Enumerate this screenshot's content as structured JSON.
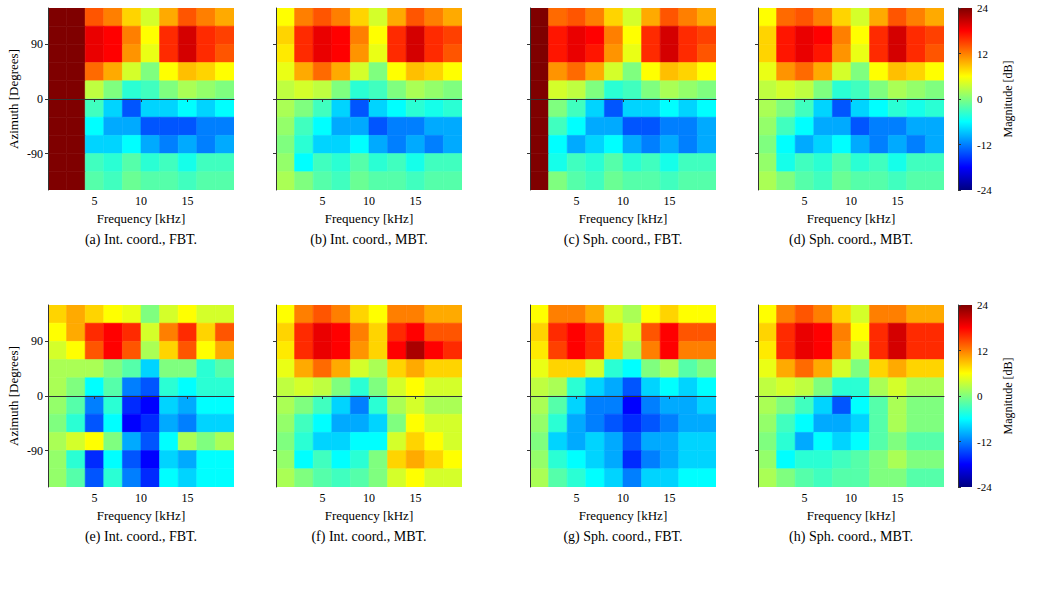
{
  "chart_data": [
    {
      "type": "heatmap",
      "caption": "(a) Int. coord., FBT.",
      "x_label": "Frequency [kHz]",
      "y_label": "Azimuth [Degrees]",
      "xlim": [
        0,
        20
      ],
      "xticks": [
        5,
        10,
        15
      ],
      "ylim": [
        -150,
        150
      ],
      "yticks": [
        90,
        0,
        -90
      ],
      "frequency_edges": [
        0,
        2,
        4,
        6,
        8,
        10,
        12,
        14,
        16,
        18,
        20
      ],
      "azimuth_edges": [
        150,
        120,
        90,
        60,
        30,
        0,
        -30,
        -60,
        -90,
        -120,
        -150
      ],
      "cells": [
        [
          24,
          24,
          14,
          12,
          8,
          4,
          10,
          14,
          12,
          10
        ],
        [
          24,
          24,
          19,
          18,
          12,
          6,
          16,
          20,
          16,
          15
        ],
        [
          24,
          24,
          19,
          18,
          11,
          5,
          16,
          20,
          16,
          14
        ],
        [
          24,
          24,
          13,
          10,
          4,
          0,
          6,
          9,
          8,
          6
        ],
        [
          24,
          24,
          3,
          0,
          -4,
          -3,
          0,
          2,
          1,
          0
        ],
        [
          24,
          24,
          -3,
          -8,
          -14,
          -8,
          -8,
          -6,
          -8,
          -6
        ],
        [
          24,
          24,
          -6,
          -10,
          -10,
          -14,
          -14,
          -14,
          -12,
          -12
        ],
        [
          24,
          24,
          -8,
          -8,
          -6,
          -10,
          -12,
          -10,
          -12,
          -10
        ],
        [
          24,
          24,
          -3,
          -4,
          -2,
          -4,
          -3,
          -5,
          -3,
          -3
        ],
        [
          24,
          24,
          -2,
          -3,
          -1,
          -2,
          -2,
          -3,
          -2,
          -2
        ]
      ]
    },
    {
      "type": "heatmap",
      "caption": "(b) Int. coord., MBT.",
      "x_label": "Frequency [kHz]",
      "tick_labels": "x",
      "xlim": [
        0,
        20
      ],
      "xticks": [
        5,
        10,
        15
      ],
      "ylim": [
        -150,
        150
      ],
      "yticks": [
        90,
        0,
        -90
      ],
      "frequency_edges": [
        0,
        2,
        4,
        6,
        8,
        10,
        12,
        14,
        16,
        18,
        20
      ],
      "azimuth_edges": [
        150,
        120,
        90,
        60,
        30,
        0,
        -30,
        -60,
        -90,
        -120,
        -150
      ],
      "cells": [
        [
          6,
          12,
          14,
          12,
          8,
          4,
          10,
          14,
          12,
          10
        ],
        [
          8,
          16,
          19,
          18,
          12,
          6,
          16,
          20,
          16,
          15
        ],
        [
          7,
          16,
          19,
          18,
          11,
          5,
          16,
          20,
          16,
          14
        ],
        [
          5,
          10,
          13,
          10,
          4,
          0,
          6,
          9,
          8,
          6
        ],
        [
          3,
          4,
          3,
          0,
          -4,
          -3,
          0,
          2,
          1,
          0
        ],
        [
          2,
          0,
          -3,
          -8,
          -14,
          -8,
          -6,
          -4,
          -5,
          -4
        ],
        [
          1,
          -3,
          -6,
          -10,
          -10,
          -14,
          -12,
          -12,
          -10,
          -10
        ],
        [
          0,
          -4,
          -8,
          -8,
          -6,
          -10,
          -12,
          -10,
          -12,
          -10
        ],
        [
          1,
          -6,
          -3,
          -4,
          -2,
          -4,
          -3,
          -5,
          -3,
          -3
        ],
        [
          2,
          0,
          -2,
          -3,
          -1,
          -2,
          -2,
          -3,
          -2,
          -2
        ]
      ]
    },
    {
      "type": "heatmap",
      "caption": "(c) Sph. coord., FBT.",
      "x_label": "Frequency [kHz]",
      "tick_labels": "x",
      "xlim": [
        0,
        20
      ],
      "xticks": [
        5,
        10,
        15
      ],
      "ylim": [
        -150,
        150
      ],
      "yticks": [
        90,
        0,
        -90
      ],
      "frequency_edges": [
        0,
        2,
        4,
        6,
        8,
        10,
        12,
        14,
        16,
        18,
        20
      ],
      "azimuth_edges": [
        150,
        120,
        90,
        60,
        30,
        0,
        -30,
        -60,
        -90,
        -120,
        -150
      ],
      "cells": [
        [
          24,
          13,
          14,
          12,
          8,
          4,
          10,
          14,
          12,
          10
        ],
        [
          24,
          17,
          19,
          18,
          12,
          6,
          16,
          20,
          16,
          15
        ],
        [
          24,
          17,
          19,
          17,
          11,
          5,
          16,
          20,
          16,
          14
        ],
        [
          24,
          11,
          13,
          10,
          4,
          0,
          6,
          9,
          8,
          6
        ],
        [
          24,
          4,
          3,
          0,
          -4,
          -3,
          0,
          2,
          1,
          0
        ],
        [
          24,
          0,
          -3,
          -8,
          -14,
          -8,
          -8,
          -6,
          -8,
          -6
        ],
        [
          24,
          -3,
          -6,
          -10,
          -10,
          -14,
          -14,
          -12,
          -12,
          -10
        ],
        [
          24,
          -6,
          -10,
          -8,
          -6,
          -10,
          -12,
          -10,
          -12,
          -10
        ],
        [
          24,
          -5,
          -3,
          -4,
          -2,
          -4,
          -3,
          -5,
          -3,
          -3
        ],
        [
          24,
          0,
          -2,
          -3,
          -1,
          -2,
          -2,
          -3,
          -2,
          -2
        ]
      ]
    },
    {
      "type": "heatmap",
      "caption": "(d) Sph. coord., MBT.",
      "x_label": "Frequency [kHz]",
      "tick_labels": "x",
      "xlim": [
        0,
        20
      ],
      "xticks": [
        5,
        10,
        15
      ],
      "ylim": [
        -150,
        150
      ],
      "yticks": [
        90,
        0,
        -90
      ],
      "frequency_edges": [
        0,
        2,
        4,
        6,
        8,
        10,
        12,
        14,
        16,
        18,
        20
      ],
      "azimuth_edges": [
        150,
        120,
        90,
        60,
        30,
        0,
        -30,
        -60,
        -90,
        -120,
        -150
      ],
      "cells": [
        [
          6,
          13,
          14,
          12,
          8,
          4,
          10,
          14,
          12,
          10
        ],
        [
          8,
          17,
          19,
          18,
          12,
          6,
          16,
          20,
          16,
          15
        ],
        [
          8,
          17,
          19,
          17,
          11,
          5,
          16,
          20,
          16,
          14
        ],
        [
          5,
          11,
          13,
          10,
          4,
          0,
          6,
          9,
          8,
          6
        ],
        [
          3,
          4,
          3,
          0,
          -4,
          -3,
          0,
          2,
          1,
          0
        ],
        [
          2,
          0,
          -3,
          -8,
          -14,
          -8,
          -6,
          -4,
          -5,
          -4
        ],
        [
          1,
          -3,
          -6,
          -10,
          -10,
          -14,
          -12,
          -12,
          -10,
          -10
        ],
        [
          0,
          -6,
          -10,
          -8,
          -6,
          -10,
          -12,
          -10,
          -12,
          -10
        ],
        [
          1,
          -5,
          -3,
          -4,
          -2,
          -4,
          -3,
          -5,
          -3,
          -3
        ],
        [
          2,
          0,
          -2,
          -3,
          -1,
          -2,
          -2,
          -3,
          -2,
          -2
        ]
      ],
      "colorbar": {
        "label": "Magnitude [dB]",
        "range": [
          -24,
          24
        ],
        "ticks": [
          24,
          12,
          0,
          -12,
          -24
        ],
        "colors": [
          "#00007f",
          "#0000ff",
          "#007fff",
          "#00ffff",
          "#7fff7f",
          "#ffff00",
          "#ff7f00",
          "#ff0000",
          "#7f0000"
        ]
      }
    },
    {
      "type": "heatmap",
      "caption": "(e) Int. coord., FBT.",
      "x_label": "Frequency [kHz]",
      "y_label": "Azimuth [Degrees]",
      "xlim": [
        0,
        20
      ],
      "xticks": [
        5,
        10,
        15
      ],
      "ylim": [
        -150,
        150
      ],
      "yticks": [
        90,
        0,
        -90
      ],
      "frequency_edges": [
        0,
        2,
        4,
        6,
        8,
        10,
        12,
        14,
        16,
        18,
        20
      ],
      "azimuth_edges": [
        150,
        120,
        90,
        60,
        30,
        0,
        -30,
        -60,
        -90,
        -120,
        -150
      ],
      "cells": [
        [
          8,
          10,
          8,
          6,
          5,
          0,
          4,
          6,
          4,
          4
        ],
        [
          6,
          10,
          16,
          18,
          16,
          4,
          12,
          16,
          8,
          14
        ],
        [
          4,
          6,
          14,
          18,
          14,
          2,
          8,
          14,
          6,
          10
        ],
        [
          2,
          2,
          2,
          0,
          -2,
          -8,
          0,
          0,
          -4,
          -2
        ],
        [
          2,
          0,
          -6,
          -2,
          -12,
          -14,
          -4,
          -6,
          -4,
          -4
        ],
        [
          1,
          -2,
          -12,
          -4,
          -16,
          -18,
          -8,
          -10,
          -6,
          -6
        ],
        [
          0,
          -4,
          -14,
          -6,
          -18,
          -16,
          -10,
          -12,
          -8,
          -8
        ],
        [
          2,
          4,
          6,
          0,
          -10,
          -14,
          -6,
          2,
          0,
          2
        ],
        [
          1,
          -4,
          -16,
          -6,
          -14,
          -18,
          -8,
          -10,
          -6,
          -6
        ],
        [
          1,
          -2,
          -14,
          -4,
          -12,
          -16,
          -6,
          -8,
          -6,
          -6
        ]
      ]
    },
    {
      "type": "heatmap",
      "caption": "(f) Int. coord., MBT.",
      "x_label": "Frequency [kHz]",
      "tick_labels": "x",
      "xlim": [
        0,
        20
      ],
      "xticks": [
        5,
        10,
        15
      ],
      "ylim": [
        -150,
        150
      ],
      "yticks": [
        90,
        0,
        -90
      ],
      "frequency_edges": [
        0,
        2,
        4,
        6,
        8,
        10,
        12,
        14,
        16,
        18,
        20
      ],
      "azimuth_edges": [
        150,
        120,
        90,
        60,
        30,
        0,
        -30,
        -60,
        -90,
        -120,
        -150
      ],
      "cells": [
        [
          6,
          12,
          14,
          12,
          8,
          6,
          12,
          12,
          10,
          10
        ],
        [
          8,
          16,
          19,
          18,
          12,
          8,
          16,
          18,
          14,
          14
        ],
        [
          7,
          16,
          19,
          18,
          11,
          8,
          18,
          22,
          18,
          16
        ],
        [
          5,
          10,
          13,
          10,
          4,
          2,
          8,
          10,
          8,
          8
        ],
        [
          3,
          4,
          3,
          0,
          -4,
          0,
          4,
          6,
          4,
          4
        ],
        [
          2,
          0,
          -3,
          -8,
          -12,
          -4,
          2,
          4,
          2,
          2
        ],
        [
          1,
          -3,
          -6,
          -10,
          -10,
          -8,
          0,
          6,
          4,
          4
        ],
        [
          0,
          -4,
          -8,
          -8,
          -6,
          -6,
          4,
          8,
          6,
          4
        ],
        [
          1,
          -6,
          -3,
          -6,
          -4,
          0,
          8,
          10,
          8,
          6
        ],
        [
          2,
          0,
          -2,
          -3,
          -2,
          0,
          4,
          6,
          4,
          4
        ]
      ]
    },
    {
      "type": "heatmap",
      "caption": "(g) Sph. coord., FBT.",
      "x_label": "Frequency [kHz]",
      "tick_labels": "x",
      "xlim": [
        0,
        20
      ],
      "xticks": [
        5,
        10,
        15
      ],
      "ylim": [
        -150,
        150
      ],
      "yticks": [
        90,
        0,
        -90
      ],
      "frequency_edges": [
        0,
        2,
        4,
        6,
        8,
        10,
        12,
        14,
        16,
        18,
        20
      ],
      "azimuth_edges": [
        150,
        120,
        90,
        60,
        30,
        0,
        -30,
        -60,
        -90,
        -120,
        -150
      ],
      "cells": [
        [
          6,
          12,
          12,
          10,
          4,
          2,
          6,
          8,
          6,
          6
        ],
        [
          8,
          16,
          18,
          16,
          8,
          4,
          14,
          18,
          14,
          14
        ],
        [
          7,
          15,
          18,
          16,
          8,
          2,
          12,
          18,
          12,
          12
        ],
        [
          5,
          8,
          8,
          4,
          -4,
          -6,
          0,
          2,
          -2,
          0
        ],
        [
          3,
          2,
          -4,
          -8,
          -10,
          -14,
          -8,
          -6,
          -8,
          -6
        ],
        [
          2,
          -2,
          -8,
          -12,
          -12,
          -18,
          -12,
          -10,
          -10,
          -8
        ],
        [
          1,
          -4,
          -10,
          -12,
          -14,
          -16,
          -14,
          -12,
          -10,
          -10
        ],
        [
          0,
          -8,
          -10,
          -8,
          -10,
          -14,
          -10,
          -10,
          -8,
          -8
        ],
        [
          1,
          -4,
          -6,
          -8,
          -10,
          -16,
          -12,
          -10,
          -8,
          -8
        ],
        [
          2,
          -2,
          -4,
          -6,
          -8,
          -12,
          -8,
          -8,
          -6,
          -6
        ]
      ]
    },
    {
      "type": "heatmap",
      "caption": "(h) Sph. coord., MBT.",
      "x_label": "Frequency [kHz]",
      "tick_labels": "x",
      "xlim": [
        0,
        20
      ],
      "xticks": [
        5,
        10,
        15
      ],
      "ylim": [
        -150,
        150
      ],
      "yticks": [
        90,
        0,
        -90
      ],
      "frequency_edges": [
        0,
        2,
        4,
        6,
        8,
        10,
        12,
        14,
        16,
        18,
        20
      ],
      "azimuth_edges": [
        150,
        120,
        90,
        60,
        30,
        0,
        -30,
        -60,
        -90,
        -120,
        -150
      ],
      "cells": [
        [
          6,
          12,
          14,
          12,
          8,
          4,
          12,
          12,
          10,
          10
        ],
        [
          8,
          16,
          19,
          18,
          12,
          6,
          16,
          20,
          16,
          16
        ],
        [
          7,
          16,
          19,
          18,
          11,
          4,
          16,
          20,
          16,
          16
        ],
        [
          5,
          10,
          13,
          10,
          4,
          0,
          8,
          10,
          8,
          8
        ],
        [
          3,
          4,
          3,
          0,
          -4,
          -4,
          2,
          4,
          2,
          2
        ],
        [
          2,
          0,
          -3,
          -8,
          -14,
          -6,
          -2,
          2,
          0,
          0
        ],
        [
          1,
          -3,
          -6,
          -10,
          -10,
          -8,
          -2,
          2,
          0,
          0
        ],
        [
          0,
          -4,
          -10,
          -6,
          -8,
          -6,
          -2,
          0,
          -2,
          -2
        ],
        [
          1,
          -6,
          -4,
          -4,
          -3,
          -2,
          0,
          2,
          0,
          0
        ],
        [
          2,
          0,
          -2,
          -3,
          -2,
          -2,
          0,
          0,
          -2,
          -2
        ]
      ],
      "colorbar": {
        "label": "Magnitude [dB]",
        "range": [
          -24,
          24
        ],
        "ticks": [
          24,
          12,
          0,
          -12,
          -24
        ],
        "colors": [
          "#00007f",
          "#0000ff",
          "#007fff",
          "#00ffff",
          "#7fff7f",
          "#ffff00",
          "#ff7f00",
          "#ff0000",
          "#7f0000"
        ]
      }
    }
  ]
}
